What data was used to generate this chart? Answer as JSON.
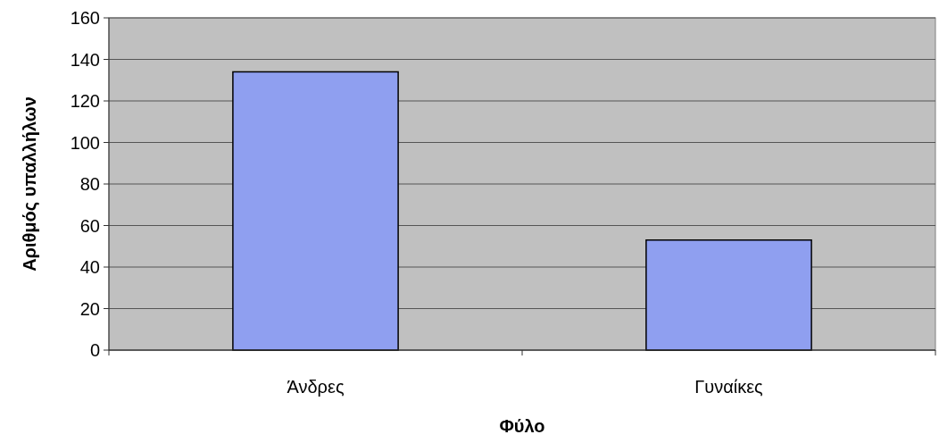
{
  "chart_data": {
    "type": "bar",
    "xlabel": "Φύλο",
    "ylabel": "Αριθμός υπαλλήλων",
    "categories": [
      "Άνδρες",
      "Γυναίκες"
    ],
    "values": [
      134,
      53
    ],
    "color": "#8f9ff0",
    "ylim": [
      0,
      160
    ],
    "yticks": [
      0,
      20,
      40,
      60,
      80,
      100,
      120,
      140,
      160
    ],
    "grid": "y"
  }
}
